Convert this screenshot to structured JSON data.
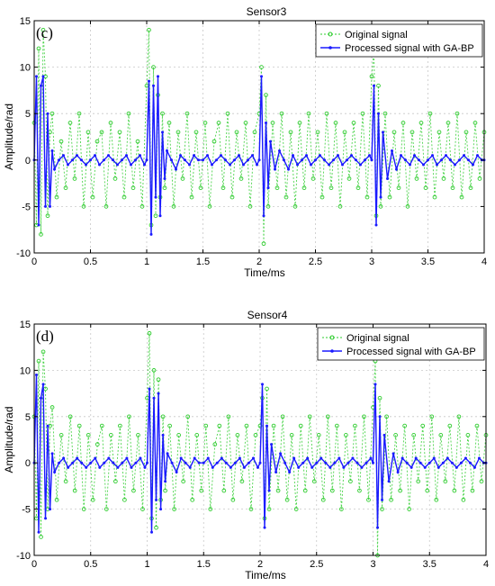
{
  "chart_data": [
    {
      "type": "line",
      "title": "Sensor3",
      "panel_label": "(c)",
      "xlabel": "Time/ms",
      "ylabel": "Amplitude/rad",
      "xlim": [
        0,
        4
      ],
      "ylim": [
        -10,
        15
      ],
      "xticks": [
        "0",
        "0.5",
        "1",
        "1.5",
        "2",
        "2.5",
        "3",
        "3.5",
        "4"
      ],
      "yticks": [
        "-10",
        "-5",
        "0",
        "5",
        "10",
        "15"
      ],
      "grid": true,
      "legend_position": "top-right",
      "legend": [
        "Original signal",
        "Processed signal with GA-BP"
      ],
      "series": [
        {
          "name": "Original signal",
          "color": "#2ecc2e",
          "x": [
            0.0,
            0.02,
            0.04,
            0.06,
            0.08,
            0.1,
            0.12,
            0.14,
            0.16,
            0.2,
            0.24,
            0.28,
            0.32,
            0.36,
            0.4,
            0.44,
            0.48,
            0.52,
            0.56,
            0.6,
            0.64,
            0.68,
            0.72,
            0.76,
            0.8,
            0.84,
            0.88,
            0.92,
            0.96,
            1.0,
            1.02,
            1.04,
            1.06,
            1.08,
            1.1,
            1.12,
            1.14,
            1.16,
            1.2,
            1.24,
            1.28,
            1.32,
            1.36,
            1.4,
            1.44,
            1.48,
            1.52,
            1.56,
            1.6,
            1.64,
            1.68,
            1.72,
            1.76,
            1.8,
            1.84,
            1.88,
            1.92,
            1.96,
            2.0,
            2.02,
            2.04,
            2.06,
            2.08,
            2.12,
            2.16,
            2.2,
            2.24,
            2.28,
            2.32,
            2.36,
            2.4,
            2.44,
            2.48,
            2.52,
            2.56,
            2.6,
            2.64,
            2.68,
            2.72,
            2.76,
            2.8,
            2.84,
            2.88,
            2.92,
            2.96,
            3.0,
            3.02,
            3.04,
            3.06,
            3.08,
            3.12,
            3.16,
            3.2,
            3.24,
            3.28,
            3.32,
            3.36,
            3.4,
            3.44,
            3.48,
            3.52,
            3.56,
            3.6,
            3.64,
            3.68,
            3.72,
            3.76,
            3.8,
            3.84,
            3.88,
            3.92,
            3.96,
            4.0
          ],
          "y": [
            4,
            -7,
            12,
            -8,
            14,
            9,
            -6,
            3,
            5,
            -4,
            2,
            -3,
            4,
            -2,
            5,
            -5,
            3,
            -4,
            2,
            3,
            -5,
            4,
            -2,
            3,
            -4,
            5,
            -3,
            2,
            -5,
            8,
            14,
            -7,
            10,
            -6,
            7,
            -4,
            5,
            -3,
            4,
            -5,
            3,
            -2,
            5,
            -4,
            3,
            -3,
            4,
            -5,
            2,
            4,
            -3,
            5,
            -4,
            3,
            -2,
            4,
            -5,
            3,
            5,
            10,
            -9,
            7,
            -5,
            4,
            -3,
            5,
            -4,
            3,
            -5,
            4,
            -3,
            5,
            -2,
            3,
            -4,
            5,
            -3,
            4,
            -5,
            3,
            -2,
            4,
            -3,
            5,
            -4,
            9,
            12,
            -6,
            8,
            -5,
            5,
            -4,
            3,
            -3,
            4,
            -5,
            3,
            -2,
            4,
            -3,
            5,
            -4,
            3,
            -2,
            4,
            -3,
            5,
            -4,
            3,
            -3,
            4,
            -2,
            3
          ]
        },
        {
          "name": "Processed signal with GA-BP",
          "color": "#1a1aff",
          "x": [
            0.0,
            0.02,
            0.04,
            0.06,
            0.08,
            0.1,
            0.12,
            0.14,
            0.16,
            0.18,
            0.22,
            0.26,
            0.3,
            0.34,
            0.38,
            0.42,
            0.46,
            0.5,
            0.54,
            0.58,
            0.62,
            0.66,
            0.7,
            0.74,
            0.78,
            0.82,
            0.86,
            0.9,
            0.94,
            0.98,
            1.0,
            1.02,
            1.04,
            1.06,
            1.08,
            1.1,
            1.12,
            1.14,
            1.16,
            1.18,
            1.22,
            1.26,
            1.3,
            1.34,
            1.38,
            1.42,
            1.46,
            1.5,
            1.54,
            1.58,
            1.62,
            1.66,
            1.7,
            1.74,
            1.78,
            1.82,
            1.86,
            1.9,
            1.94,
            1.98,
            2.0,
            2.02,
            2.04,
            2.06,
            2.08,
            2.1,
            2.14,
            2.18,
            2.22,
            2.26,
            2.3,
            2.34,
            2.38,
            2.42,
            2.46,
            2.5,
            2.54,
            2.58,
            2.62,
            2.66,
            2.7,
            2.74,
            2.78,
            2.82,
            2.86,
            2.9,
            2.94,
            2.98,
            3.0,
            3.02,
            3.04,
            3.06,
            3.08,
            3.1,
            3.14,
            3.18,
            3.22,
            3.26,
            3.3,
            3.34,
            3.38,
            3.42,
            3.46,
            3.5,
            3.54,
            3.58,
            3.62,
            3.66,
            3.7,
            3.74,
            3.78,
            3.82,
            3.86,
            3.9,
            3.94,
            3.98,
            4.0
          ],
          "y": [
            0,
            9,
            -7,
            8,
            9,
            -5,
            5,
            -5,
            1,
            -1,
            0,
            0.5,
            -0.5,
            0,
            0.5,
            0,
            -0.5,
            0,
            0.5,
            -0.5,
            0,
            0.5,
            0,
            -0.5,
            0,
            0.5,
            -0.5,
            0,
            0.5,
            -0.5,
            0,
            8.5,
            -8,
            8,
            -4,
            9,
            -6,
            3,
            -2,
            1,
            0,
            -1,
            0.5,
            0,
            -0.5,
            0.5,
            0,
            0,
            0.5,
            -0.5,
            0,
            0.5,
            0,
            -0.5,
            0,
            0.5,
            -0.5,
            0,
            0.5,
            -0.5,
            0,
            9,
            -6,
            4,
            -3,
            2,
            -1,
            1,
            0,
            -1,
            0.5,
            -0.5,
            0,
            0.5,
            -0.5,
            0,
            0.5,
            0,
            -0.5,
            0,
            0.5,
            -0.5,
            0,
            0.5,
            0,
            -0.5,
            0,
            0.5,
            0,
            8,
            -7,
            5,
            -4,
            3,
            -2,
            1,
            -1,
            0.5,
            0,
            -0.5,
            0.5,
            0,
            -0.5,
            0,
            0.5,
            -0.5,
            0,
            0.5,
            0,
            -0.5,
            0,
            0.5,
            0,
            -0.5,
            0.5,
            0,
            0
          ]
        }
      ]
    },
    {
      "type": "line",
      "title": "Sensor4",
      "panel_label": "(d)",
      "xlabel": "Time/ms",
      "ylabel": "Amplitude/rad",
      "xlim": [
        0,
        4
      ],
      "ylim": [
        -10,
        15
      ],
      "xticks": [
        "0",
        "0.5",
        "1",
        "1.5",
        "2",
        "2.5",
        "3",
        "3.5",
        "4"
      ],
      "yticks": [
        "-10",
        "-5",
        "0",
        "5",
        "10",
        "15"
      ],
      "grid": true,
      "legend_position": "top-right",
      "legend": [
        "Original signal",
        "Processed signal with GA-BP"
      ],
      "series": [
        {
          "name": "Original signal",
          "color": "#2ecc2e",
          "x": [
            0.0,
            0.02,
            0.04,
            0.06,
            0.08,
            0.1,
            0.12,
            0.14,
            0.16,
            0.2,
            0.24,
            0.28,
            0.32,
            0.36,
            0.4,
            0.44,
            0.48,
            0.52,
            0.56,
            0.6,
            0.64,
            0.68,
            0.72,
            0.76,
            0.8,
            0.84,
            0.88,
            0.92,
            0.96,
            1.0,
            1.02,
            1.04,
            1.06,
            1.08,
            1.1,
            1.12,
            1.14,
            1.16,
            1.2,
            1.24,
            1.28,
            1.32,
            1.36,
            1.4,
            1.44,
            1.48,
            1.52,
            1.56,
            1.6,
            1.64,
            1.68,
            1.72,
            1.76,
            1.8,
            1.84,
            1.88,
            1.92,
            1.96,
            2.0,
            2.02,
            2.04,
            2.06,
            2.08,
            2.12,
            2.16,
            2.2,
            2.24,
            2.28,
            2.32,
            2.36,
            2.4,
            2.44,
            2.48,
            2.52,
            2.56,
            2.6,
            2.64,
            2.68,
            2.72,
            2.76,
            2.8,
            2.84,
            2.88,
            2.92,
            2.96,
            3.0,
            3.02,
            3.04,
            3.06,
            3.08,
            3.12,
            3.16,
            3.2,
            3.24,
            3.28,
            3.32,
            3.36,
            3.4,
            3.44,
            3.48,
            3.52,
            3.56,
            3.6,
            3.64,
            3.68,
            3.72,
            3.76,
            3.8,
            3.84,
            3.88,
            3.92,
            3.96,
            4.0
          ],
          "y": [
            5,
            -6,
            11,
            -8,
            12,
            8,
            -5,
            4,
            6,
            -4,
            3,
            -2,
            5,
            -3,
            4,
            -5,
            3,
            -4,
            2,
            4,
            -5,
            3,
            -2,
            4,
            -4,
            5,
            -3,
            3,
            -5,
            7,
            14,
            -6,
            10,
            -7,
            9,
            -4,
            5,
            -3,
            4,
            -5,
            3,
            -2,
            5,
            -4,
            3,
            -3,
            4,
            -5,
            2,
            4,
            -3,
            5,
            -4,
            3,
            -2,
            4,
            -5,
            3,
            4,
            7,
            -6,
            8,
            -5,
            4,
            -3,
            5,
            -4,
            3,
            -5,
            4,
            -3,
            5,
            -2,
            3,
            -4,
            5,
            -3,
            4,
            -5,
            3,
            -2,
            4,
            -3,
            5,
            -4,
            6,
            11,
            -10,
            7,
            -5,
            5,
            -4,
            3,
            -3,
            4,
            -5,
            3,
            -2,
            4,
            -3,
            5,
            -4,
            3,
            -2,
            4,
            -3,
            5,
            -4,
            3,
            -3,
            4,
            -2,
            3
          ]
        },
        {
          "name": "Processed signal with GA-BP",
          "color": "#1a1aff",
          "x": [
            0.0,
            0.02,
            0.04,
            0.06,
            0.08,
            0.1,
            0.12,
            0.14,
            0.16,
            0.18,
            0.22,
            0.26,
            0.3,
            0.34,
            0.38,
            0.42,
            0.46,
            0.5,
            0.54,
            0.58,
            0.62,
            0.66,
            0.7,
            0.74,
            0.78,
            0.82,
            0.86,
            0.9,
            0.94,
            0.98,
            1.0,
            1.02,
            1.04,
            1.06,
            1.08,
            1.1,
            1.12,
            1.14,
            1.16,
            1.18,
            1.22,
            1.26,
            1.3,
            1.34,
            1.38,
            1.42,
            1.46,
            1.5,
            1.54,
            1.58,
            1.62,
            1.66,
            1.7,
            1.74,
            1.78,
            1.82,
            1.86,
            1.9,
            1.94,
            1.98,
            2.0,
            2.02,
            2.04,
            2.06,
            2.08,
            2.1,
            2.14,
            2.18,
            2.22,
            2.26,
            2.3,
            2.34,
            2.38,
            2.42,
            2.46,
            2.5,
            2.54,
            2.58,
            2.62,
            2.66,
            2.7,
            2.74,
            2.78,
            2.82,
            2.86,
            2.9,
            2.94,
            2.98,
            3.0,
            3.02,
            3.04,
            3.06,
            3.08,
            3.1,
            3.14,
            3.18,
            3.22,
            3.26,
            3.3,
            3.34,
            3.38,
            3.42,
            3.46,
            3.5,
            3.54,
            3.58,
            3.62,
            3.66,
            3.7,
            3.74,
            3.78,
            3.82,
            3.86,
            3.9,
            3.94,
            3.98,
            4.0
          ],
          "y": [
            0,
            9.5,
            -7.5,
            7,
            8.5,
            -6,
            4,
            -5,
            1,
            -1,
            0,
            0.5,
            -0.5,
            0,
            0.5,
            0,
            -0.5,
            0,
            0.5,
            -0.5,
            0,
            0.5,
            0,
            -0.5,
            0,
            0.5,
            -0.5,
            0,
            0.5,
            -0.5,
            0,
            8,
            -7.5,
            7,
            -4,
            7.5,
            -5,
            3,
            -2,
            1,
            0,
            -1,
            0.5,
            0,
            -0.5,
            0.5,
            0,
            0,
            0.5,
            -0.5,
            0,
            0.5,
            0,
            -0.5,
            0,
            0.5,
            -0.5,
            0,
            0.5,
            -0.5,
            0,
            8.5,
            -7,
            4,
            -3,
            2,
            -1,
            1,
            0,
            -1,
            0.5,
            -0.5,
            0,
            0.5,
            -0.5,
            0,
            0.5,
            0,
            -0.5,
            0,
            0.5,
            -0.5,
            0,
            0.5,
            0,
            -0.5,
            0,
            0.5,
            0,
            8.5,
            -7,
            5,
            -4,
            3,
            -2,
            1,
            -1,
            0.5,
            0,
            -0.5,
            0.5,
            0,
            -0.5,
            0,
            0.5,
            -0.5,
            0,
            0.5,
            0,
            -0.5,
            0,
            0.5,
            0,
            -0.5,
            0.5,
            0,
            0
          ]
        }
      ]
    }
  ]
}
